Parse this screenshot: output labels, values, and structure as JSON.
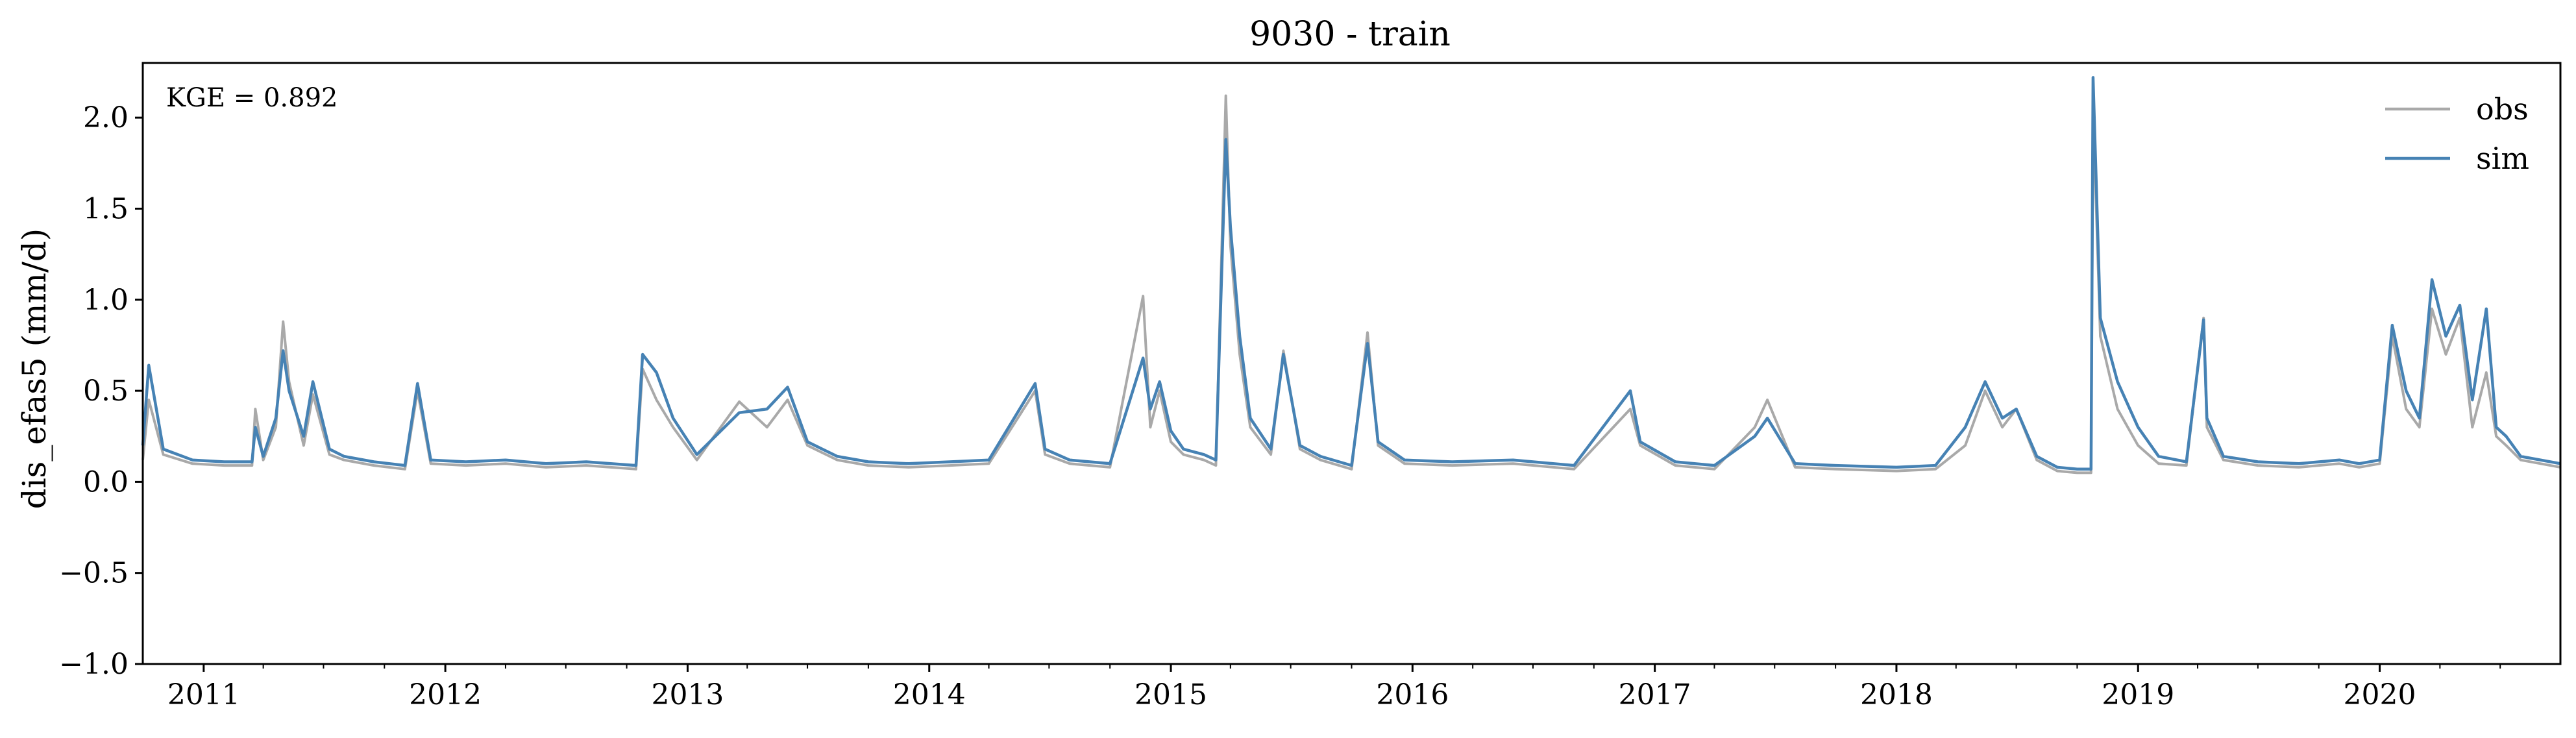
{
  "chart_data": {
    "type": "line",
    "title": "9030 - train",
    "xlabel": "",
    "ylabel": "dis_efas5 (mm/d)",
    "ylim": [
      -1.0,
      2.3
    ],
    "yticks": [
      -1.0,
      -0.5,
      0.0,
      0.5,
      1.0,
      1.5,
      2.0
    ],
    "ytick_labels": [
      "−1.0",
      "−0.5",
      "0.0",
      "0.5",
      "1.0",
      "1.5",
      "2.0"
    ],
    "xlim": [
      "2010-10-01",
      "2020-09-30"
    ],
    "xticks": [
      "2011-01-01",
      "2012-01-01",
      "2013-01-01",
      "2014-01-01",
      "2015-01-01",
      "2016-01-01",
      "2017-01-01",
      "2018-01-01",
      "2019-01-01",
      "2020-01-01"
    ],
    "xtick_labels": [
      "2011",
      "2012",
      "2013",
      "2014",
      "2015",
      "2016",
      "2017",
      "2018",
      "2019",
      "2020"
    ],
    "annotation": "KGE = 0.892",
    "legend_position": "top-right",
    "grid": false,
    "series": [
      {
        "name": "obs",
        "color": "#a9a9a9",
        "x": [
          "2010-10-01",
          "2010-10-10",
          "2010-11-01",
          "2010-12-15",
          "2011-02-01",
          "2011-03-15",
          "2011-03-20",
          "2011-04-01",
          "2011-04-20",
          "2011-05-01",
          "2011-05-10",
          "2011-06-01",
          "2011-06-15",
          "2011-07-10",
          "2011-08-01",
          "2011-09-15",
          "2011-11-01",
          "2011-11-20",
          "2011-12-10",
          "2012-02-01",
          "2012-04-01",
          "2012-06-01",
          "2012-08-01",
          "2012-10-15",
          "2012-10-25",
          "2012-11-15",
          "2012-12-10",
          "2013-01-15",
          "2013-03-20",
          "2013-05-01",
          "2013-06-01",
          "2013-07-01",
          "2013-08-15",
          "2013-10-01",
          "2013-12-01",
          "2014-02-01",
          "2014-04-01",
          "2014-06-10",
          "2014-06-25",
          "2014-08-01",
          "2014-10-01",
          "2014-11-20",
          "2014-12-01",
          "2014-12-15",
          "2015-01-01",
          "2015-01-20",
          "2015-02-20",
          "2015-03-10",
          "2015-03-25",
          "2015-04-01",
          "2015-04-15",
          "2015-05-01",
          "2015-06-01",
          "2015-06-20",
          "2015-07-15",
          "2015-08-15",
          "2015-10-01",
          "2015-10-25",
          "2015-11-10",
          "2015-12-20",
          "2016-03-01",
          "2016-06-01",
          "2016-09-01",
          "2016-11-25",
          "2016-12-10",
          "2017-02-01",
          "2017-04-01",
          "2017-06-01",
          "2017-06-20",
          "2017-08-01",
          "2017-10-01",
          "2018-01-01",
          "2018-03-01",
          "2018-04-15",
          "2018-05-15",
          "2018-06-10",
          "2018-07-01",
          "2018-08-01",
          "2018-09-01",
          "2018-10-01",
          "2018-10-22",
          "2018-10-25",
          "2018-11-05",
          "2018-12-01",
          "2019-01-01",
          "2019-02-01",
          "2019-03-15",
          "2019-04-10",
          "2019-04-15",
          "2019-05-10",
          "2019-07-01",
          "2019-09-01",
          "2019-11-01",
          "2019-12-01",
          "2020-01-01",
          "2020-01-20",
          "2020-02-10",
          "2020-03-01",
          "2020-03-20",
          "2020-04-10",
          "2020-05-01",
          "2020-05-20",
          "2020-06-10",
          "2020-06-25",
          "2020-07-10",
          "2020-08-01",
          "2020-09-30"
        ],
        "values": [
          0.12,
          0.45,
          0.15,
          0.1,
          0.09,
          0.09,
          0.4,
          0.12,
          0.3,
          0.88,
          0.55,
          0.2,
          0.48,
          0.15,
          0.12,
          0.09,
          0.07,
          0.5,
          0.1,
          0.09,
          0.1,
          0.08,
          0.09,
          0.07,
          0.62,
          0.45,
          0.3,
          0.12,
          0.44,
          0.3,
          0.45,
          0.2,
          0.12,
          0.09,
          0.08,
          0.09,
          0.1,
          0.5,
          0.15,
          0.1,
          0.08,
          1.02,
          0.3,
          0.5,
          0.22,
          0.15,
          0.12,
          0.09,
          2.12,
          1.3,
          0.7,
          0.3,
          0.15,
          0.72,
          0.18,
          0.12,
          0.07,
          0.82,
          0.2,
          0.1,
          0.09,
          0.1,
          0.07,
          0.4,
          0.2,
          0.09,
          0.07,
          0.3,
          0.45,
          0.08,
          0.07,
          0.06,
          0.07,
          0.2,
          0.5,
          0.3,
          0.4,
          0.12,
          0.06,
          0.05,
          0.05,
          2.05,
          0.8,
          0.4,
          0.2,
          0.1,
          0.09,
          0.9,
          0.3,
          0.12,
          0.09,
          0.08,
          0.1,
          0.08,
          0.1,
          0.8,
          0.4,
          0.3,
          0.95,
          0.7,
          0.9,
          0.3,
          0.6,
          0.25,
          0.2,
          0.12,
          0.08
        ]
      },
      {
        "name": "sim",
        "color": "#4682b4",
        "x": [
          "2010-10-01",
          "2010-10-10",
          "2010-11-01",
          "2010-12-15",
          "2011-02-01",
          "2011-03-15",
          "2011-03-20",
          "2011-04-01",
          "2011-04-20",
          "2011-05-01",
          "2011-05-10",
          "2011-06-01",
          "2011-06-15",
          "2011-07-10",
          "2011-08-01",
          "2011-09-15",
          "2011-11-01",
          "2011-11-20",
          "2011-12-10",
          "2012-02-01",
          "2012-04-01",
          "2012-06-01",
          "2012-08-01",
          "2012-10-15",
          "2012-10-25",
          "2012-11-15",
          "2012-12-10",
          "2013-01-15",
          "2013-03-20",
          "2013-05-01",
          "2013-06-01",
          "2013-07-01",
          "2013-08-15",
          "2013-10-01",
          "2013-12-01",
          "2014-02-01",
          "2014-04-01",
          "2014-06-10",
          "2014-06-25",
          "2014-08-01",
          "2014-10-01",
          "2014-11-20",
          "2014-12-01",
          "2014-12-15",
          "2015-01-01",
          "2015-01-20",
          "2015-02-20",
          "2015-03-10",
          "2015-03-25",
          "2015-04-01",
          "2015-04-15",
          "2015-05-01",
          "2015-06-01",
          "2015-06-20",
          "2015-07-15",
          "2015-08-15",
          "2015-10-01",
          "2015-10-25",
          "2015-11-10",
          "2015-12-20",
          "2016-03-01",
          "2016-06-01",
          "2016-09-01",
          "2016-11-25",
          "2016-12-10",
          "2017-02-01",
          "2017-04-01",
          "2017-06-01",
          "2017-06-20",
          "2017-08-01",
          "2017-10-01",
          "2018-01-01",
          "2018-03-01",
          "2018-04-15",
          "2018-05-15",
          "2018-06-10",
          "2018-07-01",
          "2018-08-01",
          "2018-09-01",
          "2018-10-01",
          "2018-10-22",
          "2018-10-25",
          "2018-11-05",
          "2018-12-01",
          "2019-01-01",
          "2019-02-01",
          "2019-03-15",
          "2019-04-10",
          "2019-04-15",
          "2019-05-10",
          "2019-07-01",
          "2019-09-01",
          "2019-11-01",
          "2019-12-01",
          "2020-01-01",
          "2020-01-20",
          "2020-02-10",
          "2020-03-01",
          "2020-03-20",
          "2020-04-10",
          "2020-05-01",
          "2020-05-20",
          "2020-06-10",
          "2020-06-25",
          "2020-07-10",
          "2020-08-01",
          "2020-09-30"
        ],
        "values": [
          0.2,
          0.64,
          0.18,
          0.12,
          0.11,
          0.11,
          0.3,
          0.14,
          0.35,
          0.72,
          0.5,
          0.25,
          0.55,
          0.18,
          0.14,
          0.11,
          0.09,
          0.54,
          0.12,
          0.11,
          0.12,
          0.1,
          0.11,
          0.09,
          0.7,
          0.6,
          0.35,
          0.15,
          0.38,
          0.4,
          0.52,
          0.22,
          0.14,
          0.11,
          0.1,
          0.11,
          0.12,
          0.54,
          0.18,
          0.12,
          0.1,
          0.68,
          0.4,
          0.55,
          0.28,
          0.18,
          0.15,
          0.12,
          1.88,
          1.4,
          0.8,
          0.35,
          0.18,
          0.7,
          0.2,
          0.14,
          0.09,
          0.76,
          0.22,
          0.12,
          0.11,
          0.12,
          0.09,
          0.5,
          0.22,
          0.11,
          0.09,
          0.25,
          0.35,
          0.1,
          0.09,
          0.08,
          0.09,
          0.3,
          0.55,
          0.35,
          0.4,
          0.14,
          0.08,
          0.07,
          0.07,
          2.22,
          0.9,
          0.55,
          0.3,
          0.14,
          0.11,
          0.89,
          0.35,
          0.14,
          0.11,
          0.1,
          0.12,
          0.1,
          0.12,
          0.86,
          0.5,
          0.35,
          1.11,
          0.8,
          0.97,
          0.45,
          0.95,
          0.3,
          0.25,
          0.14,
          0.1
        ]
      }
    ]
  }
}
